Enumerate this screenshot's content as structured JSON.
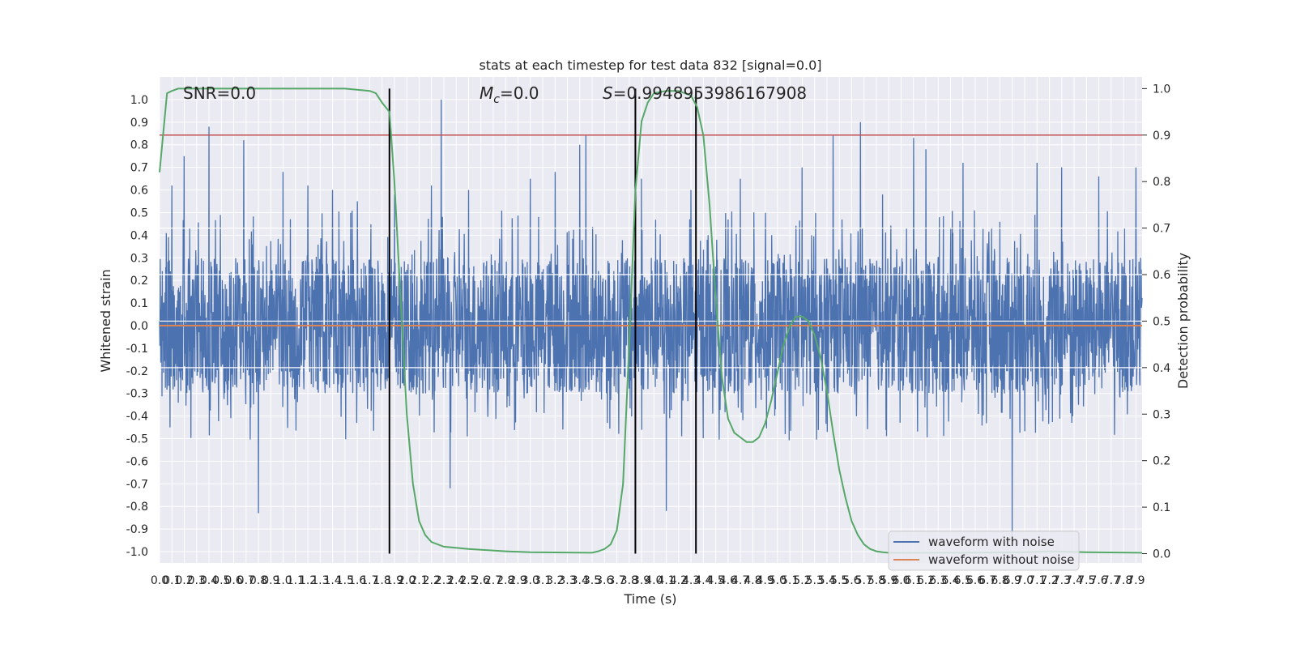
{
  "chart_data": {
    "type": "line",
    "title": "stats at each timestep for test data 832 [signal=0.0]",
    "xlabel": "Time (s)",
    "ylabel": "Whitened strain",
    "y2label": "Detection probability",
    "xlim": [
      0.0,
      7.95
    ],
    "ylim": [
      -1.05,
      1.1
    ],
    "y2lim": [
      -0.02,
      1.025
    ],
    "x_ticks": [
      0.0,
      0.1,
      0.2,
      0.3,
      0.4,
      0.5,
      0.6,
      0.7,
      0.8,
      0.9,
      1.0,
      1.1,
      1.2,
      1.3,
      1.4,
      1.5,
      1.6,
      1.7,
      1.8,
      1.9,
      2.0,
      2.1,
      2.2,
      2.3,
      2.4,
      2.5,
      2.6,
      2.7,
      2.8,
      2.9,
      3.0,
      3.1,
      3.2,
      3.3,
      3.4,
      3.5,
      3.6,
      3.7,
      3.8,
      3.9,
      4.0,
      4.1,
      4.2,
      4.3,
      4.4,
      4.5,
      4.6,
      4.7,
      4.8,
      4.9,
      5.0,
      5.1,
      5.2,
      5.3,
      5.4,
      5.5,
      5.6,
      5.7,
      5.8,
      5.9,
      6.0,
      6.1,
      6.2,
      6.3,
      6.4,
      6.5,
      6.6,
      6.7,
      6.8,
      6.9,
      7.0,
      7.1,
      7.2,
      7.3,
      7.4,
      7.5,
      7.6,
      7.7,
      7.8,
      7.9
    ],
    "y_ticks": [
      -1.0,
      -0.9,
      -0.8,
      -0.7,
      -0.6,
      -0.5,
      -0.4,
      -0.3,
      -0.2,
      -0.1,
      0.0,
      0.1,
      0.2,
      0.3,
      0.4,
      0.5,
      0.6,
      0.7,
      0.8,
      0.9,
      1.0
    ],
    "y2_ticks": [
      0.0,
      0.1,
      0.2,
      0.3,
      0.4,
      0.5,
      0.6,
      0.7,
      0.8,
      0.9,
      1.0
    ],
    "grid": true,
    "legend_position": "lower-right",
    "annotations": {
      "snr": "SNR=0.0",
      "mc_symbol": "M",
      "mc_subscript": "c",
      "mc_value": "=0.0",
      "s_symbol": "S",
      "s_value": "=0.9948953986167908"
    },
    "threshold": {
      "value": 0.9,
      "axis": "right",
      "color": "#c44e52"
    },
    "secondary_gridlines_y2": [
      0.4,
      0.5,
      0.6,
      0.7
    ],
    "vertical_lines_x": [
      1.86,
      3.85,
      4.34
    ],
    "series": [
      {
        "name": "waveform with noise",
        "color": "#4c72b0",
        "description_peaks": [
          [
            0.1,
            0.62
          ],
          [
            0.2,
            0.75
          ],
          [
            0.4,
            0.88
          ],
          [
            0.68,
            0.82
          ],
          [
            0.8,
            -0.83
          ],
          [
            1.0,
            0.68
          ],
          [
            1.2,
            0.62
          ],
          [
            1.4,
            0.6
          ],
          [
            1.6,
            0.55
          ],
          [
            1.9,
            0.58
          ],
          [
            2.2,
            0.62
          ],
          [
            2.28,
            1.0
          ],
          [
            2.35,
            -0.72
          ],
          [
            2.5,
            0.6
          ],
          [
            3.0,
            0.65
          ],
          [
            3.2,
            0.68
          ],
          [
            3.4,
            0.8
          ],
          [
            3.45,
            0.84
          ],
          [
            3.9,
            0.65
          ],
          [
            4.1,
            -0.82
          ],
          [
            4.3,
            0.6
          ],
          [
            4.7,
            0.65
          ],
          [
            5.2,
            0.7
          ],
          [
            5.45,
            0.84
          ],
          [
            5.67,
            0.9
          ],
          [
            5.85,
            0.58
          ],
          [
            6.1,
            0.83
          ],
          [
            6.2,
            0.78
          ],
          [
            6.5,
            0.72
          ],
          [
            6.9,
            -0.93
          ],
          [
            7.1,
            0.72
          ],
          [
            7.3,
            0.7
          ],
          [
            7.6,
            0.66
          ],
          [
            7.9,
            0.7
          ]
        ],
        "noise_amplitude": 0.3
      },
      {
        "name": "waveform without noise",
        "color": "#dd8452",
        "x": [
          0.0,
          7.95
        ],
        "y": [
          0.0,
          0.0
        ]
      },
      {
        "name": "",
        "axis": "right",
        "color": "#55a868",
        "x": [
          0.0,
          0.06,
          0.1,
          0.15,
          0.2,
          0.5,
          1.0,
          1.5,
          1.7,
          1.75,
          1.8,
          1.86,
          1.9,
          1.95,
          2.0,
          2.05,
          2.1,
          2.15,
          2.2,
          2.3,
          2.5,
          2.8,
          3.0,
          3.5,
          3.55,
          3.6,
          3.65,
          3.7,
          3.75,
          3.8,
          3.85,
          3.9,
          3.95,
          4.0,
          4.1,
          4.2,
          4.3,
          4.35,
          4.4,
          4.45,
          4.5,
          4.55,
          4.6,
          4.65,
          4.7,
          4.75,
          4.8,
          4.85,
          4.9,
          4.95,
          5.0,
          5.05,
          5.1,
          5.15,
          5.2,
          5.25,
          5.3,
          5.35,
          5.4,
          5.45,
          5.5,
          5.55,
          5.6,
          5.65,
          5.7,
          5.75,
          5.8,
          5.85,
          5.9,
          6.0,
          6.5,
          7.0,
          7.2,
          7.5,
          7.95
        ],
        "y": [
          0.82,
          0.99,
          0.995,
          1.0,
          1.0,
          1.0,
          1.0,
          1.0,
          0.995,
          0.99,
          0.97,
          0.95,
          0.8,
          0.55,
          0.3,
          0.15,
          0.07,
          0.04,
          0.025,
          0.015,
          0.01,
          0.005,
          0.003,
          0.002,
          0.005,
          0.01,
          0.02,
          0.05,
          0.15,
          0.45,
          0.78,
          0.93,
          0.97,
          0.99,
          0.995,
          0.995,
          0.985,
          0.96,
          0.9,
          0.75,
          0.55,
          0.38,
          0.29,
          0.26,
          0.25,
          0.24,
          0.24,
          0.25,
          0.28,
          0.33,
          0.39,
          0.45,
          0.49,
          0.51,
          0.51,
          0.5,
          0.47,
          0.42,
          0.35,
          0.26,
          0.18,
          0.12,
          0.07,
          0.04,
          0.02,
          0.01,
          0.005,
          0.003,
          0.002,
          0.002,
          0.002,
          0.003,
          0.005,
          0.003,
          0.002
        ]
      }
    ]
  }
}
